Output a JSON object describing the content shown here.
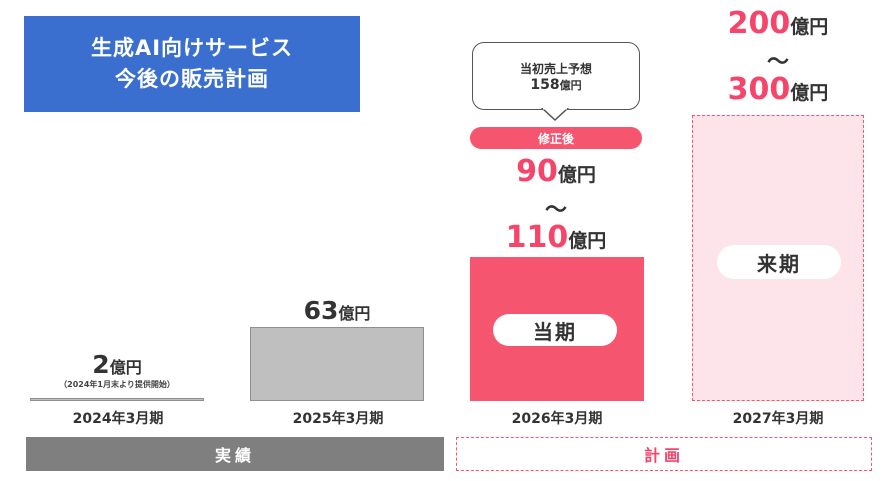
{
  "title": {
    "line1": "生成AI向けサービス",
    "line2": "今後の販売計画"
  },
  "chart_data": {
    "type": "bar",
    "categories": [
      "2024年3月期",
      "2025年3月期",
      "2026年3月期",
      "2027年3月期"
    ],
    "values": [
      2,
      63,
      [
        90,
        110
      ],
      [
        200,
        300
      ]
    ],
    "unit": "億円",
    "bars": [
      {
        "category": "2024年3月期",
        "value": "2",
        "unit": "億円",
        "note": "（2024年1月末より提供開始）",
        "status": "実績"
      },
      {
        "category": "2025年3月期",
        "value": "63",
        "unit": "億円",
        "status": "実績"
      },
      {
        "category": "2026年3月期",
        "value_low": "90",
        "value_high": "110",
        "unit": "億円",
        "status": "計画",
        "pill": "当期",
        "revised_tag": "修正後",
        "original_forecast_label": "当初売上予想",
        "original_forecast_value": "158",
        "original_forecast_unit": "億円"
      },
      {
        "category": "2027年3月期",
        "value_low": "200",
        "value_high": "300",
        "unit": "億円",
        "status": "計画",
        "pill": "来期"
      }
    ],
    "range_separator": "〜",
    "groups": {
      "actual": "実績",
      "plan": "計画"
    }
  },
  "colors": {
    "title_bg": "#3a6fd0",
    "pink": "#f6556f",
    "gray": "#bfbfbf",
    "planned_fill": "#fde4ea",
    "band_gray": "#7f7f7f"
  }
}
